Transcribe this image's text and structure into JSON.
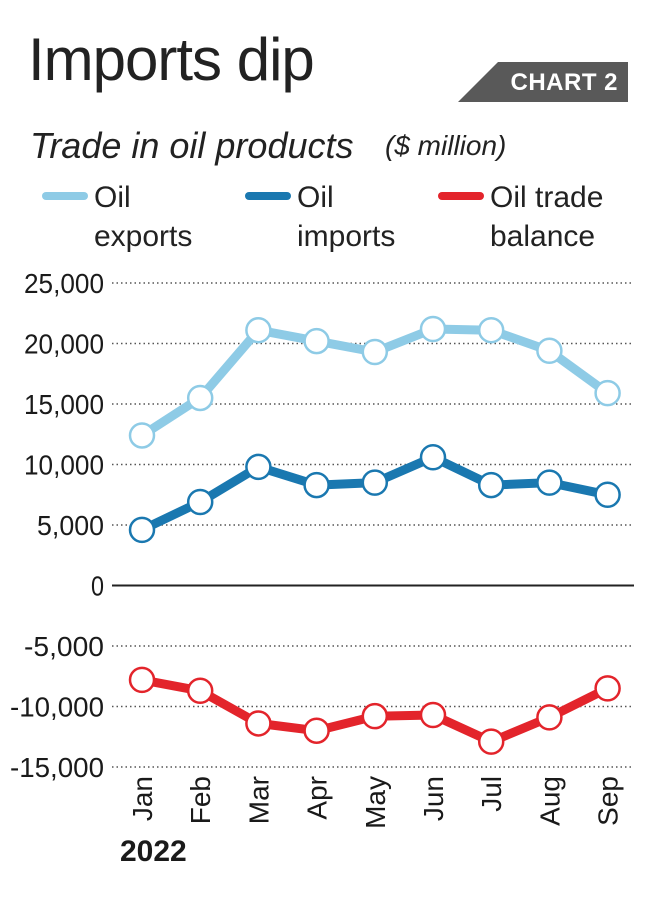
{
  "header": {
    "title": "Imports dip",
    "badge": "CHART 2",
    "subtitle": "Trade in oil products",
    "unit": "($ million)"
  },
  "chart_data": {
    "type": "line",
    "title": "Imports dip",
    "subtitle": "Trade in oil products ($ million)",
    "categories": [
      "Jan",
      "Feb",
      "Mar",
      "Apr",
      "May",
      "Jun",
      "Jul",
      "Aug",
      "Sep"
    ],
    "year_label": "2022",
    "ylim": [
      -15000,
      25000
    ],
    "yticks": [
      25000,
      20000,
      15000,
      10000,
      5000,
      0,
      -5000,
      -10000,
      -15000
    ],
    "ytick_labels": [
      "25,000",
      "20,000",
      "15,000",
      "10,000",
      "5,000",
      "0",
      "-5,000",
      "-10,000",
      "-15,000"
    ],
    "grid": "dotted horizontal",
    "legend_position": "top",
    "series": [
      {
        "name": "Oil exports",
        "label_lines": [
          "Oil",
          "exports"
        ],
        "color": "#8ecbe6",
        "values": [
          12400,
          15500,
          21100,
          20200,
          19300,
          21200,
          21100,
          19400,
          15900
        ]
      },
      {
        "name": "Oil imports",
        "label_lines": [
          "Oil",
          "imports"
        ],
        "color": "#1a78b0",
        "values": [
          4600,
          6900,
          9800,
          8300,
          8500,
          10600,
          8300,
          8500,
          7500
        ]
      },
      {
        "name": "Oil trade balance",
        "label_lines": [
          "Oil trade",
          "balance"
        ],
        "color": "#e3242b",
        "values": [
          -7800,
          -8700,
          -11400,
          -12000,
          -10800,
          -10700,
          -12900,
          -10900,
          -8500
        ]
      }
    ]
  }
}
